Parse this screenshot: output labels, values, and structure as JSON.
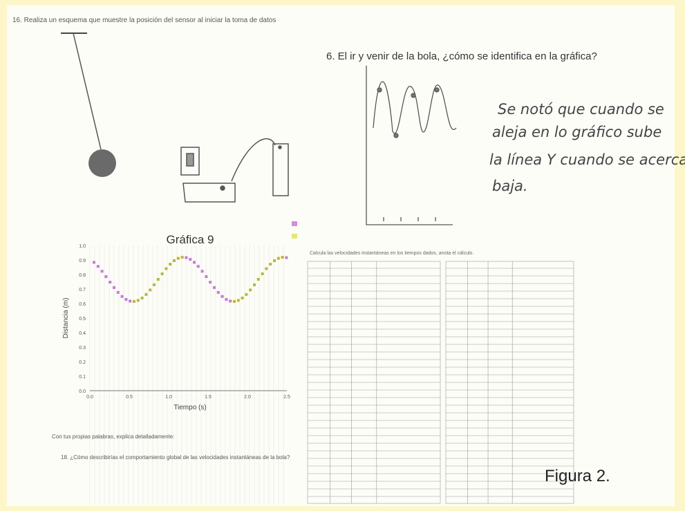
{
  "header": {
    "question_16": "16. Realiza un esquema que muestre la posición del sensor al iniciar la toma de datos"
  },
  "sketch": {
    "question_6": "6. El ir y venir de la bola, ¿cómo se identifica en la gráfica?",
    "answer_lines": [
      "Se notó que cuando se",
      "aleja en lo gráfico sube",
      "la línea Y cuando se acerca",
      "baja."
    ]
  },
  "graph": {
    "title": "Gráfica 9",
    "y_label": "Distancia (m)",
    "x_label": "Tiempo (s)",
    "y_ticks": [
      "1.0",
      "0.9",
      "0.8",
      "0.7",
      "0.6",
      "0.5",
      "0.4",
      "0.3",
      "0.2",
      "0.1",
      "0.0"
    ],
    "x_ticks": [
      "0.0",
      "0.5",
      "1.0",
      "1.5",
      "2.0",
      "2.5"
    ]
  },
  "table": {
    "instruction": "Calcula las velocidades instantáneas en los tiempos dados, anota el cálculo."
  },
  "questions": {
    "prompt": "Con tus propias palabras, explica detalladamente:",
    "question_18": "18. ¿Cómo describirías el comportamiento global de las velocidades instantáneas de la bola?"
  },
  "caption": "Figura 2."
}
